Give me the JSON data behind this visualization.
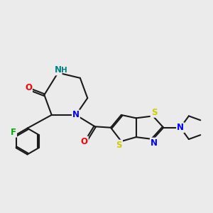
{
  "background_color": "#ebebeb",
  "bond_color": "#1a1a1a",
  "atom_colors": {
    "N": "#0000ff",
    "NH": "#008080",
    "O": "#ff0000",
    "S": "#cccc00",
    "F": "#00aa00",
    "C": "#1a1a1a"
  },
  "figsize": [
    3.0,
    3.0
  ],
  "dpi": 100
}
